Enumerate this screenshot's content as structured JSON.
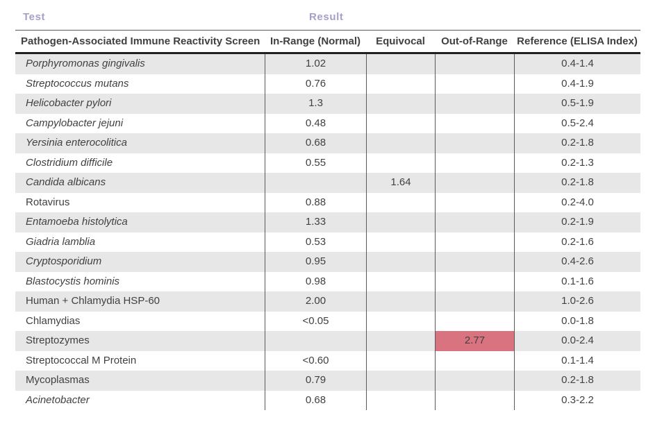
{
  "top_header": {
    "test_label": "Test",
    "result_label": "Result"
  },
  "columns": {
    "test": "Pathogen-Associated Immune Reactivity Screen",
    "in_range": "In-Range (Normal)",
    "equivocal": "Equivocal",
    "out_of_range": "Out-of-Range",
    "reference": "Reference (ELISA Index)"
  },
  "colors": {
    "header_accent": "#a5a0c9",
    "body_text": "#414042",
    "row_stripe": "#e7e7e8",
    "out_of_range_highlight": "#d8737f",
    "rule_thin": "#58595b",
    "rule_thick": "#231f20"
  },
  "rows": [
    {
      "name": "Porphyromonas gingivalis",
      "italic": true,
      "in_range": "1.02",
      "equivocal": "",
      "out_of_range": "",
      "reference": "0.4-1.4",
      "out_highlight": false
    },
    {
      "name": "Streptococcus mutans",
      "italic": true,
      "in_range": "0.76",
      "equivocal": "",
      "out_of_range": "",
      "reference": "0.4-1.9",
      "out_highlight": false
    },
    {
      "name": "Helicobacter pylori",
      "italic": true,
      "in_range": "1.3",
      "equivocal": "",
      "out_of_range": "",
      "reference": "0.5-1.9",
      "out_highlight": false
    },
    {
      "name": "Campylobacter jejuni",
      "italic": true,
      "in_range": "0.48",
      "equivocal": "",
      "out_of_range": "",
      "reference": "0.5-2.4",
      "out_highlight": false
    },
    {
      "name": "Yersinia enterocolitica",
      "italic": true,
      "in_range": "0.68",
      "equivocal": "",
      "out_of_range": "",
      "reference": "0.2-1.8",
      "out_highlight": false
    },
    {
      "name": "Clostridium difficile",
      "italic": true,
      "in_range": "0.55",
      "equivocal": "",
      "out_of_range": "",
      "reference": "0.2-1.3",
      "out_highlight": false
    },
    {
      "name": "Candida albicans",
      "italic": true,
      "in_range": "",
      "equivocal": "1.64",
      "out_of_range": "",
      "reference": "0.2-1.8",
      "out_highlight": false
    },
    {
      "name": "Rotavirus",
      "italic": false,
      "in_range": "0.88",
      "equivocal": "",
      "out_of_range": "",
      "reference": "0.2-4.0",
      "out_highlight": false
    },
    {
      "name": "Entamoeba histolytica",
      "italic": true,
      "in_range": "1.33",
      "equivocal": "",
      "out_of_range": "",
      "reference": "0.2-1.9",
      "out_highlight": false
    },
    {
      "name": "Giadria lamblia",
      "italic": true,
      "in_range": "0.53",
      "equivocal": "",
      "out_of_range": "",
      "reference": "0.2-1.6",
      "out_highlight": false
    },
    {
      "name": "Cryptosporidium",
      "italic": true,
      "in_range": "0.95",
      "equivocal": "",
      "out_of_range": "",
      "reference": "0.4-2.6",
      "out_highlight": false
    },
    {
      "name": "Blastocystis hominis",
      "italic": true,
      "in_range": "0.98",
      "equivocal": "",
      "out_of_range": "",
      "reference": "0.1-1.6",
      "out_highlight": false
    },
    {
      "name": "Human + Chlamydia HSP-60",
      "italic": false,
      "in_range": "2.00",
      "equivocal": "",
      "out_of_range": "",
      "reference": "1.0-2.6",
      "out_highlight": false
    },
    {
      "name": "Chlamydias",
      "italic": false,
      "in_range": "<0.05",
      "equivocal": "",
      "out_of_range": "",
      "reference": "0.0-1.8",
      "out_highlight": false
    },
    {
      "name": "Streptozymes",
      "italic": false,
      "in_range": "",
      "equivocal": "",
      "out_of_range": "2.77",
      "reference": "0.0-2.4",
      "out_highlight": true
    },
    {
      "name": "Streptococcal M Protein",
      "italic": false,
      "in_range": "<0.60",
      "equivocal": "",
      "out_of_range": "",
      "reference": "0.1-1.4",
      "out_highlight": false
    },
    {
      "name": "Mycoplasmas",
      "italic": false,
      "in_range": "0.79",
      "equivocal": "",
      "out_of_range": "",
      "reference": "0.2-1.8",
      "out_highlight": false
    },
    {
      "name": "Acinetobacter",
      "italic": true,
      "in_range": "0.68",
      "equivocal": "",
      "out_of_range": "",
      "reference": "0.3-2.2",
      "out_highlight": false
    }
  ]
}
